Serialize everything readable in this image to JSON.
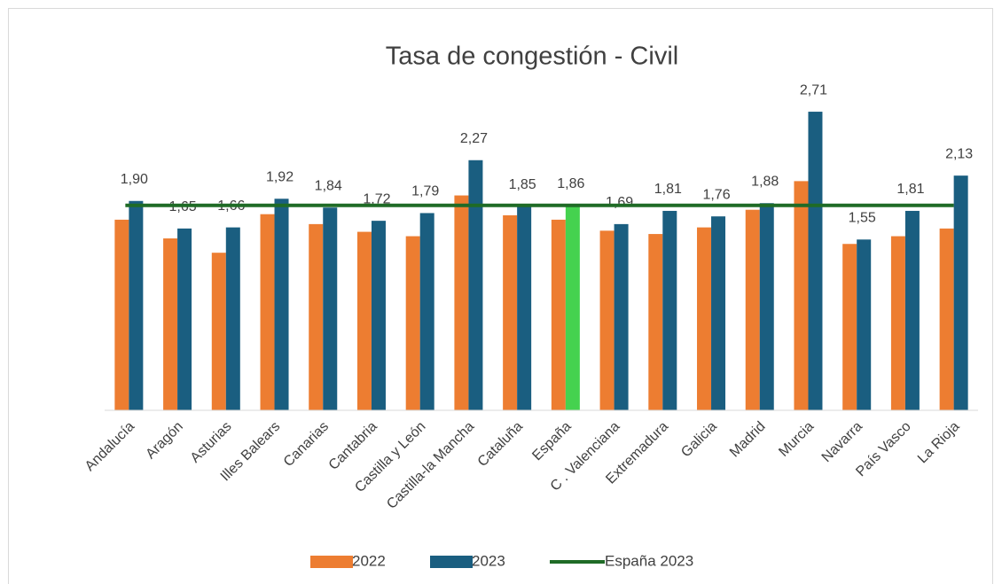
{
  "chart_data": {
    "type": "bar",
    "title": "Tasa de congestión - Civil",
    "categories": [
      "Andalucía",
      "Aragón",
      "Asturias",
      "Illes Balears",
      "Canarias",
      "Cantabria",
      "Castilla y León",
      "Castilla-la Mancha",
      "Cataluña",
      "España",
      "C . Valenciana",
      "Extremadura",
      "Galicia",
      "Madrid",
      "Murcia",
      "Navarra",
      "País Vasco",
      "La Rioja"
    ],
    "series": [
      {
        "name": "2022",
        "color": "#ed7d31",
        "values": [
          1.73,
          1.56,
          1.43,
          1.78,
          1.69,
          1.62,
          1.58,
          1.95,
          1.77,
          1.73,
          1.63,
          1.6,
          1.66,
          1.82,
          2.08,
          1.51,
          1.58,
          1.65
        ]
      },
      {
        "name": "2023",
        "color": "#1a5e80",
        "values": [
          1.9,
          1.65,
          1.66,
          1.92,
          1.84,
          1.72,
          1.79,
          2.27,
          1.85,
          1.86,
          1.69,
          1.81,
          1.76,
          1.88,
          2.71,
          1.55,
          1.81,
          2.13
        ],
        "value_labels": [
          "1,90",
          "1,65",
          "1,66",
          "1,92",
          "1,84",
          "1,72",
          "1,79",
          "2,27",
          "1,85",
          "1,86",
          "1,69",
          "1,81",
          "1,76",
          "1,88",
          "2,71",
          "1,55",
          "1,81",
          "2,13"
        ],
        "highlight_category": "España",
        "highlight_color": "#45d24f"
      }
    ],
    "reference_line": {
      "name": "España 2023",
      "value": 1.86,
      "color": "#1f6b26"
    },
    "ylim": [
      0,
      3
    ]
  }
}
